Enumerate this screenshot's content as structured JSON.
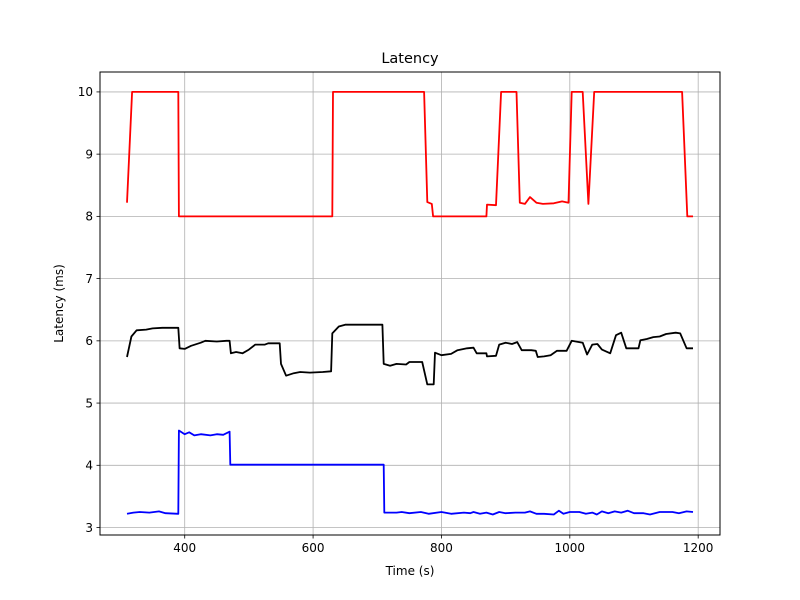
{
  "chart_data": {
    "type": "line",
    "title": "Latency",
    "xlabel": "Time (s)",
    "ylabel": "Latency (ms)",
    "xlim": [
      268,
      1234
    ],
    "ylim": [
      2.88,
      10.32
    ],
    "xticks": [
      400,
      600,
      800,
      1000,
      1200
    ],
    "yticks": [
      3,
      4,
      5,
      6,
      7,
      8,
      9,
      10
    ],
    "grid": true,
    "legend": "none",
    "series": [
      {
        "color": "#ff0000",
        "points": [
          [
            310,
            8.22
          ],
          [
            318,
            10.0
          ],
          [
            390,
            10.0
          ],
          [
            391,
            8.0
          ],
          [
            630,
            8.0
          ],
          [
            631,
            10.0
          ],
          [
            773,
            10.0
          ],
          [
            778,
            8.23
          ],
          [
            785,
            8.2
          ],
          [
            787,
            8.0
          ],
          [
            870,
            8.0
          ],
          [
            871,
            8.19
          ],
          [
            885,
            8.18
          ],
          [
            893,
            10.0
          ],
          [
            917,
            10.0
          ],
          [
            922,
            8.22
          ],
          [
            930,
            8.2
          ],
          [
            938,
            8.31
          ],
          [
            948,
            8.22
          ],
          [
            958,
            8.2
          ],
          [
            975,
            8.21
          ],
          [
            988,
            8.24
          ],
          [
            998,
            8.22
          ],
          [
            1003,
            10.0
          ],
          [
            1020,
            10.0
          ],
          [
            1029,
            8.2
          ],
          [
            1038,
            10.0
          ],
          [
            1175,
            10.0
          ],
          [
            1183,
            8.0
          ],
          [
            1192,
            8.0
          ]
        ]
      },
      {
        "color": "#000000",
        "points": [
          [
            310,
            5.74
          ],
          [
            317,
            6.07
          ],
          [
            325,
            6.17
          ],
          [
            340,
            6.18
          ],
          [
            350,
            6.2
          ],
          [
            365,
            6.21
          ],
          [
            390,
            6.21
          ],
          [
            392,
            5.88
          ],
          [
            400,
            5.87
          ],
          [
            410,
            5.92
          ],
          [
            425,
            5.97
          ],
          [
            432,
            6.0
          ],
          [
            450,
            5.99
          ],
          [
            465,
            6.0
          ],
          [
            470,
            6.0
          ],
          [
            472,
            5.8
          ],
          [
            480,
            5.82
          ],
          [
            490,
            5.8
          ],
          [
            500,
            5.86
          ],
          [
            510,
            5.94
          ],
          [
            525,
            5.94
          ],
          [
            530,
            5.96
          ],
          [
            548,
            5.96
          ],
          [
            550,
            5.63
          ],
          [
            558,
            5.44
          ],
          [
            570,
            5.48
          ],
          [
            580,
            5.5
          ],
          [
            595,
            5.49
          ],
          [
            615,
            5.5
          ],
          [
            628,
            5.51
          ],
          [
            630,
            6.12
          ],
          [
            640,
            6.23
          ],
          [
            650,
            6.26
          ],
          [
            690,
            6.26
          ],
          [
            708,
            6.26
          ],
          [
            710,
            5.63
          ],
          [
            720,
            5.6
          ],
          [
            730,
            5.63
          ],
          [
            745,
            5.62
          ],
          [
            750,
            5.66
          ],
          [
            770,
            5.66
          ],
          [
            778,
            5.3
          ],
          [
            788,
            5.3
          ],
          [
            790,
            5.81
          ],
          [
            800,
            5.77
          ],
          [
            815,
            5.79
          ],
          [
            825,
            5.85
          ],
          [
            840,
            5.88
          ],
          [
            850,
            5.89
          ],
          [
            855,
            5.8
          ],
          [
            870,
            5.8
          ],
          [
            871,
            5.75
          ],
          [
            885,
            5.76
          ],
          [
            890,
            5.94
          ],
          [
            900,
            5.97
          ],
          [
            910,
            5.95
          ],
          [
            918,
            5.98
          ],
          [
            925,
            5.85
          ],
          [
            940,
            5.85
          ],
          [
            947,
            5.84
          ],
          [
            950,
            5.74
          ],
          [
            960,
            5.75
          ],
          [
            970,
            5.77
          ],
          [
            980,
            5.84
          ],
          [
            995,
            5.84
          ],
          [
            1003,
            6.0
          ],
          [
            1020,
            5.97
          ],
          [
            1027,
            5.78
          ],
          [
            1035,
            5.94
          ],
          [
            1043,
            5.95
          ],
          [
            1050,
            5.86
          ],
          [
            1063,
            5.8
          ],
          [
            1072,
            6.09
          ],
          [
            1080,
            6.13
          ],
          [
            1088,
            5.88
          ],
          [
            1107,
            5.88
          ],
          [
            1110,
            6.01
          ],
          [
            1120,
            6.03
          ],
          [
            1130,
            6.06
          ],
          [
            1140,
            6.07
          ],
          [
            1150,
            6.11
          ],
          [
            1165,
            6.13
          ],
          [
            1172,
            6.12
          ],
          [
            1182,
            5.88
          ],
          [
            1192,
            5.88
          ]
        ]
      },
      {
        "color": "#0000ff",
        "points": [
          [
            310,
            3.22
          ],
          [
            320,
            3.24
          ],
          [
            330,
            3.25
          ],
          [
            345,
            3.24
          ],
          [
            360,
            3.26
          ],
          [
            370,
            3.23
          ],
          [
            390,
            3.22
          ],
          [
            391,
            4.56
          ],
          [
            400,
            4.5
          ],
          [
            407,
            4.53
          ],
          [
            415,
            4.48
          ],
          [
            425,
            4.5
          ],
          [
            440,
            4.48
          ],
          [
            450,
            4.5
          ],
          [
            460,
            4.49
          ],
          [
            470,
            4.54
          ],
          [
            471,
            4.01
          ],
          [
            710,
            4.01
          ],
          [
            711,
            3.24
          ],
          [
            730,
            3.24
          ],
          [
            738,
            3.25
          ],
          [
            750,
            3.23
          ],
          [
            768,
            3.25
          ],
          [
            780,
            3.22
          ],
          [
            800,
            3.25
          ],
          [
            815,
            3.22
          ],
          [
            835,
            3.24
          ],
          [
            845,
            3.23
          ],
          [
            850,
            3.25
          ],
          [
            860,
            3.22
          ],
          [
            870,
            3.24
          ],
          [
            880,
            3.21
          ],
          [
            890,
            3.25
          ],
          [
            900,
            3.23
          ],
          [
            915,
            3.24
          ],
          [
            930,
            3.24
          ],
          [
            938,
            3.26
          ],
          [
            948,
            3.22
          ],
          [
            960,
            3.22
          ],
          [
            975,
            3.21
          ],
          [
            983,
            3.27
          ],
          [
            990,
            3.22
          ],
          [
            1000,
            3.25
          ],
          [
            1015,
            3.25
          ],
          [
            1025,
            3.22
          ],
          [
            1035,
            3.24
          ],
          [
            1042,
            3.21
          ],
          [
            1050,
            3.26
          ],
          [
            1060,
            3.23
          ],
          [
            1070,
            3.26
          ],
          [
            1080,
            3.24
          ],
          [
            1090,
            3.27
          ],
          [
            1100,
            3.23
          ],
          [
            1115,
            3.23
          ],
          [
            1125,
            3.21
          ],
          [
            1140,
            3.25
          ],
          [
            1160,
            3.25
          ],
          [
            1170,
            3.23
          ],
          [
            1182,
            3.26
          ],
          [
            1192,
            3.25
          ]
        ]
      }
    ]
  }
}
